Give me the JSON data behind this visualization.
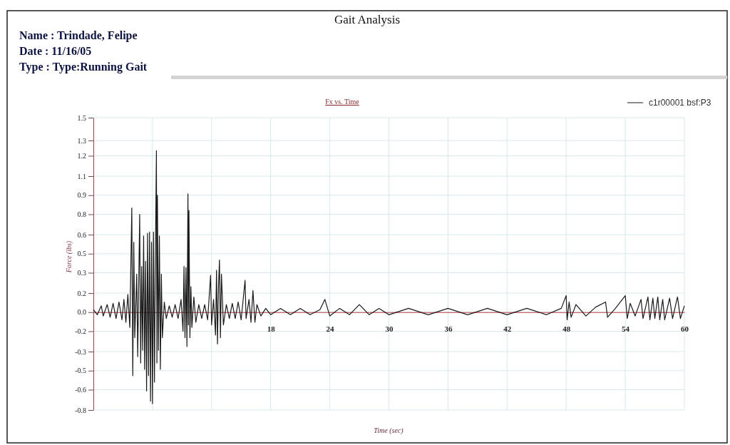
{
  "chart_data": {
    "type": "line",
    "title": "Gait Analysis",
    "subtitle": "Fx vs. Time",
    "annotations": [
      "Name : Trindade, Felipe",
      "Date : 11/16/05",
      "Type : Type:Running Gait"
    ],
    "xlabel": "Time (sec)",
    "ylabel": "Force (lbs)",
    "xlim": [
      0,
      60
    ],
    "xticks": [
      {
        "value": 0,
        "label": null
      },
      {
        "value": 6,
        "label": null
      },
      {
        "value": 12,
        "label": null
      },
      18,
      24,
      30,
      36,
      42,
      48,
      54,
      60
    ],
    "ylim": [
      -0.77,
      1.53
    ],
    "yticks": [
      {
        "value": 1.53,
        "label": "1.5"
      },
      {
        "value": 1.35,
        "label": "1.3"
      },
      {
        "value": 1.23,
        "label": "1.2"
      },
      {
        "value": 1.07,
        "label": "1.1"
      },
      {
        "value": 0.92,
        "label": "0.9"
      },
      {
        "value": 0.77,
        "label": "0.8"
      },
      {
        "value": 0.61,
        "label": "0.6"
      },
      {
        "value": 0.46,
        "label": "0.5"
      },
      {
        "value": 0.31,
        "label": "0.3"
      },
      {
        "value": 0.15,
        "label": "0.2"
      },
      {
        "value": 0,
        "label": "0.0"
      },
      {
        "value": -0.15,
        "label": "-0.2"
      },
      {
        "value": -0.31,
        "label": "-0.3"
      },
      {
        "value": -0.46,
        "label": "-0.5"
      },
      {
        "value": -0.61,
        "label": "-0.6"
      },
      {
        "value": -0.77,
        "label": "-0.8"
      }
    ],
    "grid": true,
    "legend": "top right",
    "marker": "none",
    "line_style": "solid",
    "series": [
      {
        "name": "c1r00001 bsf:P3",
        "color": "#1a1a1a",
        "x": [
          0,
          0.4,
          0.8,
          1.0,
          1.4,
          1.7,
          2.0,
          2.3,
          2.6,
          2.9,
          3.1,
          3.3,
          3.5,
          3.7,
          3.9,
          4.0,
          4.1,
          4.2,
          4.4,
          4.5,
          4.7,
          4.8,
          4.9,
          5.0,
          5.1,
          5.2,
          5.3,
          5.4,
          5.5,
          5.6,
          5.7,
          5.8,
          5.9,
          6.0,
          6.1,
          6.2,
          6.3,
          6.4,
          6.45,
          6.5,
          6.6,
          6.7,
          6.8,
          6.9,
          7.0,
          7.2,
          7.4,
          7.7,
          8.0,
          8.3,
          8.6,
          8.9,
          9.1,
          9.2,
          9.3,
          9.4,
          9.5,
          9.6,
          9.65,
          9.7,
          9.8,
          9.9,
          10.0,
          10.2,
          10.4,
          10.7,
          11.0,
          11.3,
          11.6,
          11.9,
          12.0,
          12.2,
          12.4,
          12.5,
          12.6,
          12.7,
          12.8,
          12.9,
          13.0,
          13.2,
          13.5,
          13.8,
          14.1,
          14.4,
          14.7,
          15.0,
          15.4,
          15.5,
          15.8,
          16.0,
          16.2,
          16.4,
          16.6,
          17.0,
          17.5,
          18,
          19,
          20,
          21,
          22,
          23,
          23.5,
          24,
          25,
          26,
          27,
          28,
          29,
          30,
          32,
          34,
          36,
          38,
          40,
          42,
          44,
          46,
          47.5,
          48.0,
          48.1,
          48.3,
          48.5,
          49,
          50,
          51,
          52.0,
          52.2,
          53,
          54.0,
          54.2,
          54.5,
          55,
          55.6,
          55.8,
          56.3,
          56.5,
          56.8,
          57.0,
          57.3,
          57.5,
          57.8,
          58.0,
          58.5,
          58.8,
          59.3,
          59.6,
          60
        ],
        "values": [
          0.02,
          -0.02,
          0.05,
          -0.03,
          0.06,
          -0.04,
          0.07,
          -0.05,
          0.08,
          -0.06,
          0.1,
          -0.08,
          0.14,
          -0.12,
          0.82,
          -0.5,
          0.55,
          -0.2,
          0.3,
          -0.35,
          0.77,
          -0.4,
          0.36,
          -0.3,
          0.6,
          -0.45,
          0.4,
          -0.62,
          0.62,
          -0.5,
          0.63,
          -0.7,
          0.55,
          -0.72,
          0.63,
          -0.55,
          0.5,
          1.27,
          -0.4,
          0.92,
          -0.3,
          0.6,
          -0.45,
          0.3,
          -0.2,
          0.08,
          -0.05,
          0.05,
          -0.04,
          0.06,
          -0.05,
          0.1,
          -0.15,
          0.36,
          -0.2,
          0.35,
          -0.27,
          0.93,
          -0.1,
          0.8,
          -0.2,
          0.2,
          -0.12,
          0.12,
          -0.08,
          0.06,
          -0.05,
          0.06,
          -0.06,
          0.29,
          -0.1,
          0.1,
          -0.18,
          0.33,
          -0.25,
          0.2,
          0.41,
          -0.2,
          0.3,
          -0.1,
          0.06,
          -0.05,
          0.07,
          -0.05,
          0.08,
          -0.06,
          0.25,
          -0.05,
          0.1,
          -0.08,
          0.17,
          -0.08,
          0.06,
          -0.03,
          0.03,
          -0.02,
          0.03,
          -0.02,
          0.03,
          -0.02,
          0.02,
          0.1,
          -0.03,
          0.03,
          -0.02,
          0.06,
          -0.02,
          0.03,
          -0.02,
          0.03,
          -0.02,
          0.03,
          -0.02,
          0.03,
          -0.02,
          0.03,
          -0.02,
          0.03,
          0.13,
          -0.06,
          0.08,
          -0.04,
          0.06,
          -0.03,
          0.04,
          0.08,
          -0.04,
          0.03,
          0.13,
          -0.05,
          0.07,
          -0.03,
          0.1,
          -0.05,
          0.12,
          -0.06,
          0.11,
          -0.05,
          0.12,
          -0.06,
          0.1,
          -0.06,
          0.11,
          -0.05,
          0.12,
          -0.05,
          0.05
        ]
      }
    ]
  }
}
